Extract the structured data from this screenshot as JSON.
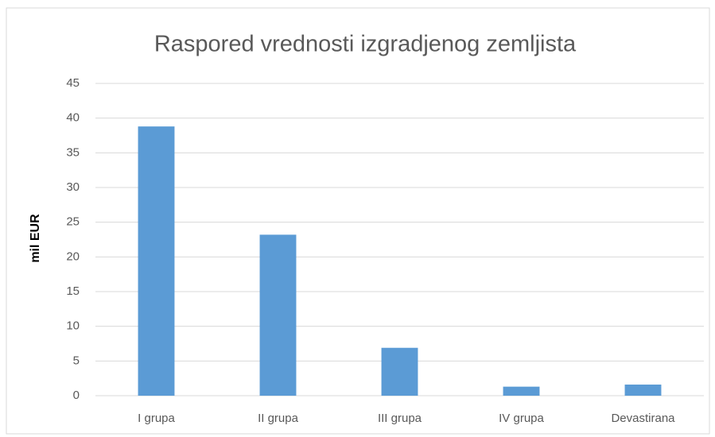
{
  "chart_data": {
    "type": "bar",
    "title": "Raspored vrednosti izgradjenog zemljista",
    "y_label": "mil EUR",
    "categories": [
      "I grupa",
      "II grupa",
      "III grupa",
      "IV grupa",
      "Devastirana"
    ],
    "values": [
      38.8,
      23.2,
      6.9,
      1.3,
      1.6
    ],
    "color": "#5b9bd5",
    "ylim": [
      0,
      45
    ],
    "yticks": [
      0,
      5,
      10,
      15,
      20,
      25,
      30,
      35,
      40,
      45
    ],
    "grid": true
  }
}
